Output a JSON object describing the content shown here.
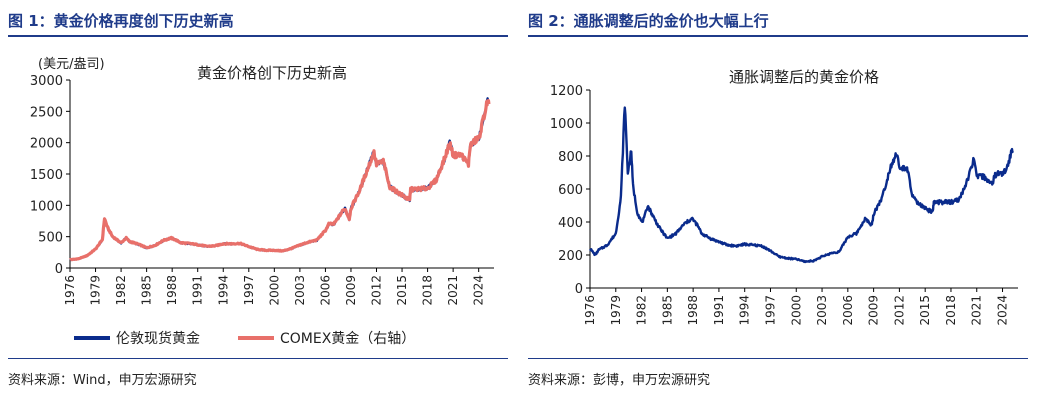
{
  "figure1": {
    "title": "图 1：黄金价格再度创下历史新高",
    "source": "资料来源：Wind，申万宏源研究"
  },
  "figure2": {
    "title": "图 2：通胀调整后的金价也大幅上行",
    "source": "资料来源：彭博，申万宏源研究"
  },
  "colors": {
    "accent": "#1f3b8a",
    "blue": "#0a2b8c",
    "red": "#e8706a"
  },
  "chart_data": [
    {
      "type": "line",
      "title": "黄金价格创下历史新高",
      "unit_label": "(美元/盎司)",
      "ylim": [
        0,
        3000
      ],
      "yticks": [
        0,
        500,
        1000,
        1500,
        2000,
        2500,
        3000
      ],
      "xlim": [
        1976,
        2025.8
      ],
      "xticks": [
        "1976",
        "1979",
        "1982",
        "1985",
        "1988",
        "1991",
        "1994",
        "1997",
        "2000",
        "2003",
        "2006",
        "2009",
        "2012",
        "2015",
        "2018",
        "2021",
        "2024"
      ],
      "legend_position": "bottom",
      "series": [
        {
          "name": "伦敦现货黄金",
          "color": "#0a2b8c",
          "x": [
            1976,
            1977,
            1978,
            1979,
            1979.8,
            1980.05,
            1980.4,
            1981,
            1982,
            1982.6,
            1983,
            1984,
            1985,
            1986,
            1987,
            1987.9,
            1988.5,
            1989,
            1990,
            1991,
            1992,
            1993,
            1994,
            1995,
            1996,
            1997,
            1998,
            1999,
            2000,
            2001,
            2002,
            2003,
            2004,
            2005,
            2006,
            2006.4,
            2007,
            2008,
            2008.3,
            2008.8,
            2009,
            2010,
            2011,
            2011.7,
            2012,
            2012.8,
            2013,
            2013.5,
            2014,
            2015,
            2015.9,
            2016,
            2017,
            2018,
            2019,
            2020,
            2020.6,
            2021,
            2022,
            2022.8,
            2023,
            2023.9,
            2024,
            2024.5,
            2025,
            2025.2
          ],
          "y": [
            130,
            145,
            195,
            300,
            450,
            800,
            650,
            500,
            400,
            480,
            420,
            380,
            320,
            360,
            440,
            480,
            440,
            400,
            390,
            370,
            345,
            350,
            385,
            385,
            390,
            340,
            295,
            280,
            280,
            270,
            310,
            365,
            410,
            445,
            600,
            700,
            700,
            900,
            950,
            780,
            950,
            1230,
            1600,
            1850,
            1650,
            1700,
            1600,
            1300,
            1250,
            1160,
            1080,
            1250,
            1260,
            1270,
            1400,
            1750,
            2000,
            1800,
            1800,
            1650,
            1950,
            2070,
            2050,
            2350,
            2650,
            2620
          ]
        },
        {
          "name": "COMEX黄金（右轴）",
          "color": "#e8706a",
          "x": [
            1976,
            1977,
            1978,
            1979,
            1979.8,
            1980.05,
            1980.4,
            1981,
            1982,
            1982.6,
            1983,
            1984,
            1985,
            1986,
            1987,
            1987.9,
            1988.5,
            1989,
            1990,
            1991,
            1992,
            1993,
            1994,
            1995,
            1996,
            1997,
            1998,
            1999,
            2000,
            2001,
            2002,
            2003,
            2004,
            2005,
            2006,
            2006.4,
            2007,
            2008,
            2008.3,
            2008.8,
            2009,
            2010,
            2011,
            2011.7,
            2012,
            2012.8,
            2013,
            2013.5,
            2014,
            2015,
            2015.9,
            2016,
            2017,
            2018,
            2019,
            2020,
            2020.6,
            2021,
            2022,
            2022.8,
            2023,
            2023.9,
            2024,
            2024.5,
            2025,
            2025.2
          ],
          "y": [
            132,
            147,
            197,
            302,
            452,
            790,
            648,
            502,
            402,
            478,
            422,
            382,
            322,
            362,
            442,
            478,
            442,
            402,
            392,
            372,
            347,
            352,
            387,
            387,
            392,
            342,
            297,
            282,
            282,
            272,
            312,
            367,
            412,
            447,
            598,
            702,
            702,
            902,
            948,
            782,
            952,
            1232,
            1598,
            1840,
            1652,
            1702,
            1602,
            1302,
            1252,
            1162,
            1082,
            1252,
            1262,
            1272,
            1402,
            1748,
            1998,
            1802,
            1802,
            1652,
            1952,
            2072,
            2052,
            2352,
            2640,
            2615
          ]
        }
      ]
    },
    {
      "type": "line",
      "title": "通胀调整后的黄金价格",
      "ylim": [
        0,
        1200
      ],
      "yticks": [
        0,
        200,
        400,
        600,
        800,
        1000,
        1200
      ],
      "xlim": [
        1976,
        2025.8
      ],
      "xticks": [
        "1976",
        "1979",
        "1982",
        "1985",
        "1988",
        "1991",
        "1994",
        "1997",
        "2000",
        "2003",
        "2006",
        "2009",
        "2012",
        "2015",
        "2018",
        "2021",
        "2024"
      ],
      "series": [
        {
          "color": "#0a2b8c",
          "x": [
            1976,
            1976.6,
            1977,
            1978,
            1979,
            1979.6,
            1980.05,
            1980.4,
            1980.8,
            1981,
            1981.5,
            1982,
            1982.3,
            1982.7,
            1983,
            1983.5,
            1984,
            1985,
            1986,
            1987,
            1987.9,
            1988.5,
            1989,
            1990,
            1991,
            1992,
            1993,
            1994,
            1995,
            1996,
            1997,
            1998,
            1999,
            2000,
            2001,
            2002,
            2003,
            2004,
            2005,
            2006,
            2007,
            2008,
            2008.8,
            2009,
            2010,
            2011,
            2011.7,
            2012,
            2012.8,
            2013,
            2013.5,
            2014,
            2015,
            2015.9,
            2016,
            2017,
            2018,
            2019,
            2020,
            2020.6,
            2021,
            2022,
            2022.8,
            2023,
            2023.9,
            2024,
            2024.5,
            2025,
            2025.2
          ],
          "y": [
            240,
            200,
            230,
            260,
            330,
            550,
            1120,
            700,
            830,
            620,
            460,
            400,
            420,
            500,
            470,
            420,
            370,
            300,
            330,
            390,
            420,
            380,
            330,
            300,
            280,
            260,
            255,
            265,
            260,
            255,
            225,
            190,
            180,
            175,
            160,
            165,
            190,
            210,
            220,
            310,
            330,
            420,
            380,
            450,
            550,
            740,
            820,
            720,
            730,
            700,
            560,
            520,
            480,
            460,
            520,
            520,
            520,
            540,
            660,
            780,
            680,
            670,
            620,
            680,
            700,
            690,
            720,
            820,
            830
          ]
        }
      ]
    }
  ]
}
